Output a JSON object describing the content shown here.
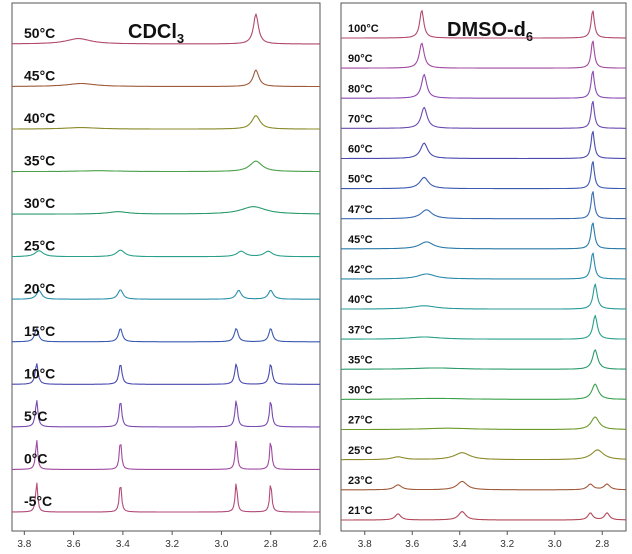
{
  "chart_data": [
    {
      "type": "line",
      "title": "CDCl",
      "title_subscript": "3",
      "xlabel": "",
      "ylabel": "",
      "x_ticks": [
        "3.8",
        "3.6",
        "3.4",
        "3.2",
        "3.0",
        "2.8",
        "2.6"
      ],
      "xlim": [
        3.85,
        2.6
      ],
      "axis_reversed": true,
      "series": [
        {
          "name": "50°C",
          "color": "#b24a6a",
          "peaks": [
            {
              "x": 3.58,
              "h": 0.18,
              "w": 0.06
            },
            {
              "x": 2.86,
              "h": 1.0,
              "w": 0.012
            }
          ]
        },
        {
          "name": "45°C",
          "color": "#a05a3a",
          "peaks": [
            {
              "x": 3.57,
              "h": 0.1,
              "w": 0.07
            },
            {
              "x": 2.86,
              "h": 0.55,
              "w": 0.014
            }
          ]
        },
        {
          "name": "40°C",
          "color": "#8a8a2a",
          "peaks": [
            {
              "x": 3.57,
              "h": 0.05,
              "w": 0.08
            },
            {
              "x": 2.86,
              "h": 0.45,
              "w": 0.02
            }
          ]
        },
        {
          "name": "35°C",
          "color": "#4aa04a",
          "peaks": [
            {
              "x": 3.5,
              "h": 0.03,
              "w": 0.1
            },
            {
              "x": 2.86,
              "h": 0.35,
              "w": 0.03
            }
          ]
        },
        {
          "name": "30°C",
          "color": "#2a9a6a",
          "peaks": [
            {
              "x": 3.42,
              "h": 0.08,
              "w": 0.05
            },
            {
              "x": 2.87,
              "h": 0.25,
              "w": 0.06
            }
          ]
        },
        {
          "name": "25°C",
          "color": "#2aa08a",
          "peaks": [
            {
              "x": 3.74,
              "h": 0.2,
              "w": 0.02
            },
            {
              "x": 3.41,
              "h": 0.22,
              "w": 0.02
            },
            {
              "x": 2.92,
              "h": 0.18,
              "w": 0.02
            },
            {
              "x": 2.81,
              "h": 0.18,
              "w": 0.02
            }
          ]
        },
        {
          "name": "20°C",
          "color": "#2a90aa",
          "peaks": [
            {
              "x": 3.74,
              "h": 0.3,
              "w": 0.012
            },
            {
              "x": 3.41,
              "h": 0.32,
              "w": 0.012
            },
            {
              "x": 2.93,
              "h": 0.3,
              "w": 0.012
            },
            {
              "x": 2.8,
              "h": 0.3,
              "w": 0.012
            }
          ]
        },
        {
          "name": "15°C",
          "color": "#3a5ab0",
          "peaks": [
            {
              "x": 3.75,
              "h": 0.45,
              "w": 0.009
            },
            {
              "x": 3.41,
              "h": 0.45,
              "w": 0.009
            },
            {
              "x": 2.94,
              "h": 0.45,
              "w": 0.009
            },
            {
              "x": 2.8,
              "h": 0.45,
              "w": 0.009
            }
          ]
        },
        {
          "name": "10°C",
          "color": "#4a4ab0",
          "peaks": [
            {
              "x": 3.75,
              "h": 0.7,
              "w": 0.007
            },
            {
              "x": 3.41,
              "h": 0.7,
              "w": 0.007
            },
            {
              "x": 2.94,
              "h": 0.7,
              "w": 0.007
            },
            {
              "x": 2.8,
              "h": 0.7,
              "w": 0.007
            }
          ]
        },
        {
          "name": "5°C",
          "color": "#7a4ab0",
          "peaks": [
            {
              "x": 3.75,
              "h": 0.9,
              "w": 0.006
            },
            {
              "x": 3.41,
              "h": 0.9,
              "w": 0.006
            },
            {
              "x": 2.94,
              "h": 0.9,
              "w": 0.006
            },
            {
              "x": 2.8,
              "h": 0.9,
              "w": 0.006
            }
          ]
        },
        {
          "name": "0°C",
          "color": "#a04aa0",
          "peaks": [
            {
              "x": 3.75,
              "h": 1.0,
              "w": 0.005
            },
            {
              "x": 3.41,
              "h": 1.0,
              "w": 0.005
            },
            {
              "x": 2.94,
              "h": 1.0,
              "w": 0.005
            },
            {
              "x": 2.8,
              "h": 1.0,
              "w": 0.005
            }
          ]
        },
        {
          "name": "-5°C",
          "color": "#b24a7a",
          "peaks": [
            {
              "x": 3.75,
              "h": 1.0,
              "w": 0.005
            },
            {
              "x": 3.41,
              "h": 1.0,
              "w": 0.005
            },
            {
              "x": 2.94,
              "h": 1.0,
              "w": 0.005
            },
            {
              "x": 2.8,
              "h": 1.0,
              "w": 0.005
            }
          ]
        }
      ]
    },
    {
      "type": "line",
      "title": "DMSO-d",
      "title_subscript": "6",
      "xlabel": "",
      "ylabel": "",
      "x_ticks": [
        "3.8",
        "3.6",
        "3.4",
        "3.2",
        "3.0",
        "2.8"
      ],
      "xlim": [
        3.9,
        2.7
      ],
      "axis_reversed": true,
      "series": [
        {
          "name": "100°C",
          "color": "#b24a6a",
          "peaks": [
            {
              "x": 3.56,
              "h": 1.0,
              "w": 0.01
            },
            {
              "x": 2.84,
              "h": 1.0,
              "w": 0.008
            }
          ]
        },
        {
          "name": "90°C",
          "color": "#a04aa0",
          "peaks": [
            {
              "x": 3.56,
              "h": 0.9,
              "w": 0.012
            },
            {
              "x": 2.84,
              "h": 1.0,
              "w": 0.008
            }
          ]
        },
        {
          "name": "80°C",
          "color": "#8a4ab0",
          "peaks": [
            {
              "x": 3.55,
              "h": 0.85,
              "w": 0.013
            },
            {
              "x": 2.84,
              "h": 1.0,
              "w": 0.008
            }
          ]
        },
        {
          "name": "70°C",
          "color": "#6a4ab0",
          "peaks": [
            {
              "x": 3.55,
              "h": 0.75,
              "w": 0.015
            },
            {
              "x": 2.84,
              "h": 1.0,
              "w": 0.008
            }
          ]
        },
        {
          "name": "60°C",
          "color": "#4a4ab0",
          "peaks": [
            {
              "x": 3.55,
              "h": 0.55,
              "w": 0.018
            },
            {
              "x": 2.84,
              "h": 1.0,
              "w": 0.008
            }
          ]
        },
        {
          "name": "50°C",
          "color": "#3a5ab0",
          "peaks": [
            {
              "x": 3.55,
              "h": 0.4,
              "w": 0.022
            },
            {
              "x": 2.84,
              "h": 1.0,
              "w": 0.008
            }
          ]
        },
        {
          "name": "47°C",
          "color": "#3a6ab0",
          "peaks": [
            {
              "x": 3.54,
              "h": 0.32,
              "w": 0.028
            },
            {
              "x": 2.84,
              "h": 1.0,
              "w": 0.008
            }
          ]
        },
        {
          "name": "45°C",
          "color": "#2a7aaa",
          "peaks": [
            {
              "x": 3.54,
              "h": 0.25,
              "w": 0.035
            },
            {
              "x": 2.84,
              "h": 0.95,
              "w": 0.009
            }
          ]
        },
        {
          "name": "42°C",
          "color": "#2a8aaa",
          "peaks": [
            {
              "x": 3.54,
              "h": 0.18,
              "w": 0.045
            },
            {
              "x": 2.84,
              "h": 0.95,
              "w": 0.009
            }
          ]
        },
        {
          "name": "40°C",
          "color": "#2a9a9a",
          "peaks": [
            {
              "x": 3.55,
              "h": 0.12,
              "w": 0.06
            },
            {
              "x": 2.83,
              "h": 0.9,
              "w": 0.01
            }
          ]
        },
        {
          "name": "37°C",
          "color": "#2aa08a",
          "peaks": [
            {
              "x": 3.55,
              "h": 0.08,
              "w": 0.08
            },
            {
              "x": 2.83,
              "h": 0.85,
              "w": 0.011
            }
          ]
        },
        {
          "name": "35°C",
          "color": "#2a9a6a",
          "peaks": [
            {
              "x": 3.5,
              "h": 0.05,
              "w": 0.12
            },
            {
              "x": 2.83,
              "h": 0.7,
              "w": 0.013
            }
          ]
        },
        {
          "name": "30°C",
          "color": "#3aa04a",
          "peaks": [
            {
              "x": 3.5,
              "h": 0.04,
              "w": 0.15
            },
            {
              "x": 2.83,
              "h": 0.55,
              "w": 0.016
            }
          ]
        },
        {
          "name": "27°C",
          "color": "#6a9a2a",
          "peaks": [
            {
              "x": 3.45,
              "h": 0.05,
              "w": 0.12
            },
            {
              "x": 2.83,
              "h": 0.45,
              "w": 0.02
            }
          ]
        },
        {
          "name": "25°C",
          "color": "#8a8a2a",
          "peaks": [
            {
              "x": 3.66,
              "h": 0.1,
              "w": 0.03
            },
            {
              "x": 3.39,
              "h": 0.25,
              "w": 0.04
            },
            {
              "x": 2.82,
              "h": 0.35,
              "w": 0.03
            }
          ]
        },
        {
          "name": "23°C",
          "color": "#a05a3a",
          "peaks": [
            {
              "x": 3.66,
              "h": 0.18,
              "w": 0.018
            },
            {
              "x": 3.39,
              "h": 0.3,
              "w": 0.025
            },
            {
              "x": 2.85,
              "h": 0.2,
              "w": 0.015
            },
            {
              "x": 2.78,
              "h": 0.2,
              "w": 0.015
            }
          ]
        },
        {
          "name": "21°C",
          "color": "#b24a5a",
          "peaks": [
            {
              "x": 3.66,
              "h": 0.22,
              "w": 0.014
            },
            {
              "x": 3.39,
              "h": 0.3,
              "w": 0.018
            },
            {
              "x": 2.85,
              "h": 0.25,
              "w": 0.012
            },
            {
              "x": 2.78,
              "h": 0.25,
              "w": 0.012
            }
          ]
        }
      ]
    }
  ]
}
